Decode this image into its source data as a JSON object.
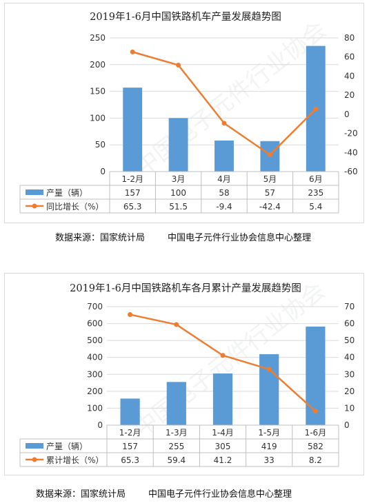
{
  "charts": [
    {
      "title": "2019年1-6月中国铁路机车产量发展趋势图",
      "source": "数据来源：国家统计局        中国电子元件行业协会信息中心整理"
    },
    {
      "title": "2019年1-6月中国铁路机车各月累计产量发展趋势图",
      "source": "数据来源：国家统计局        中国电子元件行业协会信息中心整理"
    }
  ],
  "watermark": "中国电子元件行业协会",
  "colors": {
    "bar": "#5b9bd5",
    "line": "#ed7d31",
    "grid": "#d9d9d9",
    "axis": "#bfbfbf"
  },
  "chart_data": [
    {
      "type": "bar",
      "title": "2019年1-6月中国铁路机车产量发展趋势图",
      "categories": [
        "1-2月",
        "3月",
        "4月",
        "5月",
        "6月"
      ],
      "series": [
        {
          "name": "产量（辆）",
          "type": "bar",
          "axis": "left",
          "values": [
            157,
            100,
            58,
            57,
            235
          ],
          "labels": [
            "157",
            "100",
            "58",
            "57",
            "235"
          ]
        },
        {
          "name": "同比增长（%）",
          "type": "line",
          "axis": "right",
          "values": [
            65.3,
            51.5,
            -9.4,
            -42.4,
            5.4
          ],
          "labels": [
            "65.3",
            "51.5",
            "-9.4",
            "-42.4",
            "5.4"
          ]
        }
      ],
      "y_left": {
        "min": 0,
        "max": 250,
        "step": 50,
        "ticks": [
          "0",
          "50",
          "100",
          "150",
          "200",
          "250"
        ]
      },
      "y_right": {
        "min": -60,
        "max": 80,
        "step": 20,
        "ticks": [
          "-60",
          "-40",
          "-20",
          "0",
          "20",
          "40",
          "60",
          "80"
        ]
      },
      "grid": true,
      "legend": "data-table-bottom"
    },
    {
      "type": "bar",
      "title": "2019年1-6月中国铁路机车各月累计产量发展趋势图",
      "categories": [
        "1-2月",
        "1-3月",
        "1-4月",
        "1-5月",
        "1-6月"
      ],
      "series": [
        {
          "name": "产量（辆）",
          "type": "bar",
          "axis": "left",
          "values": [
            157,
            255,
            305,
            419,
            582
          ],
          "labels": [
            "157",
            "255",
            "305",
            "419",
            "582"
          ]
        },
        {
          "name": "累计增长（%）",
          "type": "line",
          "axis": "right",
          "values": [
            65.3,
            59.4,
            41.2,
            33,
            8.2
          ],
          "labels": [
            "65.3",
            "59.4",
            "41.2",
            "33",
            "8.2"
          ]
        }
      ],
      "y_left": {
        "min": 0,
        "max": 700,
        "step": 100,
        "ticks": [
          "0",
          "100",
          "200",
          "300",
          "400",
          "500",
          "600",
          "700"
        ]
      },
      "y_right": {
        "min": 0,
        "max": 70,
        "step": 10,
        "ticks": [
          "0",
          "10",
          "20",
          "30",
          "40",
          "50",
          "60",
          "70"
        ]
      },
      "grid": true,
      "legend": "data-table-bottom"
    }
  ]
}
